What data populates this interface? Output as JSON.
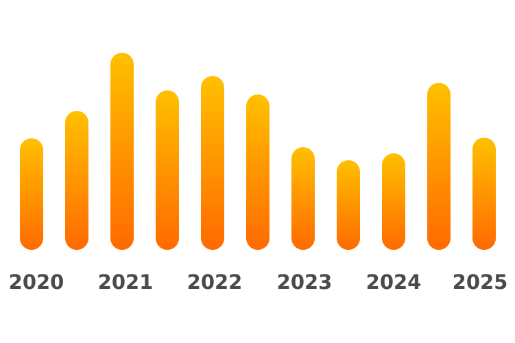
{
  "chart_data": {
    "type": "bar",
    "title": "",
    "xlabel": "",
    "ylabel": "",
    "categories": [
      "",
      "",
      "",
      "",
      "",
      "",
      "",
      "",
      "",
      "",
      ""
    ],
    "x_tick_labels": [
      "2020",
      "2021",
      "2022",
      "2023",
      "2024",
      "2025"
    ],
    "series": [
      {
        "values": [
          163,
          203,
          288,
          233,
          254,
          227,
          150,
          131,
          141,
          244,
          164
        ]
      }
    ],
    "ylim": [
      0,
      300
    ],
    "grid": false,
    "legend": "none",
    "colors": {
      "bar_top": "#ffc000",
      "bar_bottom": "#ff6a00",
      "tick_text": "#4a4a4a"
    }
  }
}
